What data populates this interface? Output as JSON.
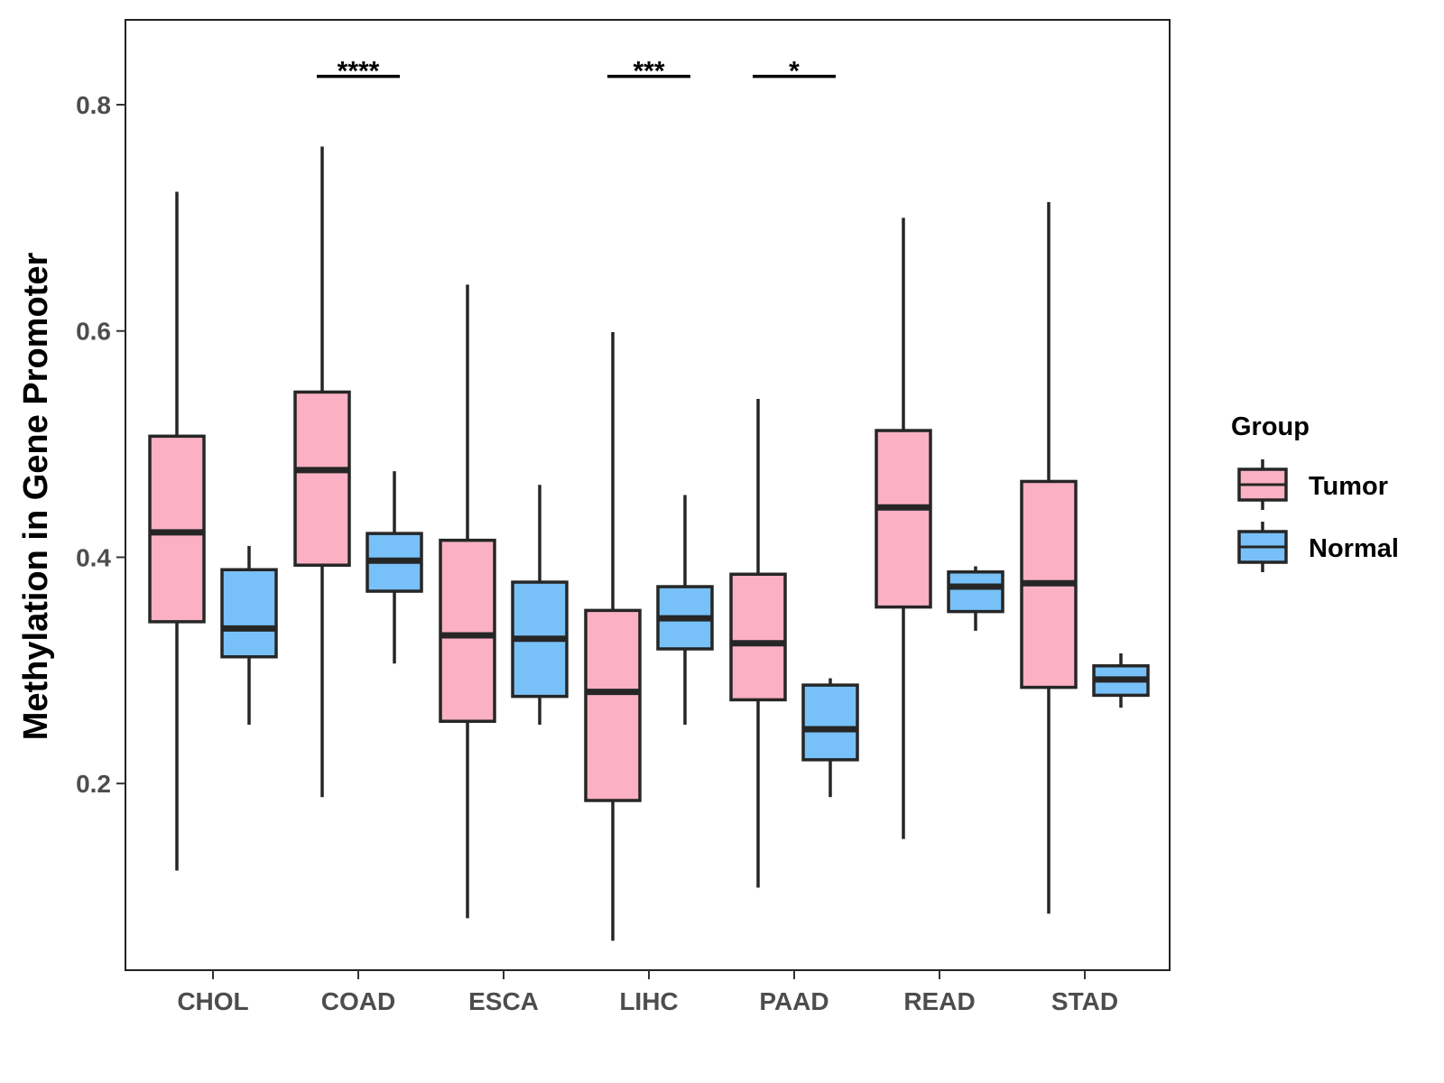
{
  "chart_data": {
    "type": "boxplot",
    "ylabel": "Methylation in Gene Promoter",
    "xlabel": "",
    "ylim": [
      0.035,
      0.875
    ],
    "yticks": [
      0.2,
      0.4,
      0.6,
      0.8
    ],
    "ytick_labels": [
      "0.2",
      "0.4",
      "0.6",
      "0.8"
    ],
    "categories": [
      "CHOL",
      "COAD",
      "ESCA",
      "LIHC",
      "PAAD",
      "READ",
      "STAD"
    ],
    "legend": {
      "title": "Group",
      "position": "right",
      "entries": [
        "Tumor",
        "Normal"
      ]
    },
    "colors": {
      "Tumor": "#FBB1C3",
      "Normal": "#78C1F8",
      "outline": "#262626"
    },
    "series": [
      {
        "name": "Tumor",
        "boxes": [
          {
            "min": 0.123,
            "q1": 0.343,
            "median": 0.422,
            "q3": 0.507,
            "max": 0.723
          },
          {
            "min": 0.188,
            "q1": 0.393,
            "median": 0.477,
            "q3": 0.546,
            "max": 0.763
          },
          {
            "min": 0.081,
            "q1": 0.255,
            "median": 0.331,
            "q3": 0.415,
            "max": 0.641
          },
          {
            "min": 0.061,
            "q1": 0.185,
            "median": 0.281,
            "q3": 0.353,
            "max": 0.599
          },
          {
            "min": 0.108,
            "q1": 0.274,
            "median": 0.324,
            "q3": 0.385,
            "max": 0.54
          },
          {
            "min": 0.151,
            "q1": 0.356,
            "median": 0.444,
            "q3": 0.512,
            "max": 0.7
          },
          {
            "min": 0.085,
            "q1": 0.285,
            "median": 0.377,
            "q3": 0.467,
            "max": 0.714
          }
        ]
      },
      {
        "name": "Normal",
        "boxes": [
          {
            "min": 0.252,
            "q1": 0.312,
            "median": 0.337,
            "q3": 0.389,
            "max": 0.41
          },
          {
            "min": 0.306,
            "q1": 0.37,
            "median": 0.397,
            "q3": 0.421,
            "max": 0.476
          },
          {
            "min": 0.252,
            "q1": 0.277,
            "median": 0.328,
            "q3": 0.378,
            "max": 0.464
          },
          {
            "min": 0.252,
            "q1": 0.319,
            "median": 0.346,
            "q3": 0.374,
            "max": 0.455
          },
          {
            "min": 0.188,
            "q1": 0.221,
            "median": 0.248,
            "q3": 0.287,
            "max": 0.293
          },
          {
            "min": 0.335,
            "q1": 0.352,
            "median": 0.374,
            "q3": 0.387,
            "max": 0.392
          },
          {
            "min": 0.267,
            "q1": 0.278,
            "median": 0.292,
            "q3": 0.304,
            "max": 0.315
          }
        ]
      }
    ],
    "significance": [
      {
        "category": "COAD",
        "label": "****",
        "y": 0.825
      },
      {
        "category": "LIHC",
        "label": "***",
        "y": 0.825
      },
      {
        "category": "PAAD",
        "label": "*",
        "y": 0.825
      }
    ]
  }
}
